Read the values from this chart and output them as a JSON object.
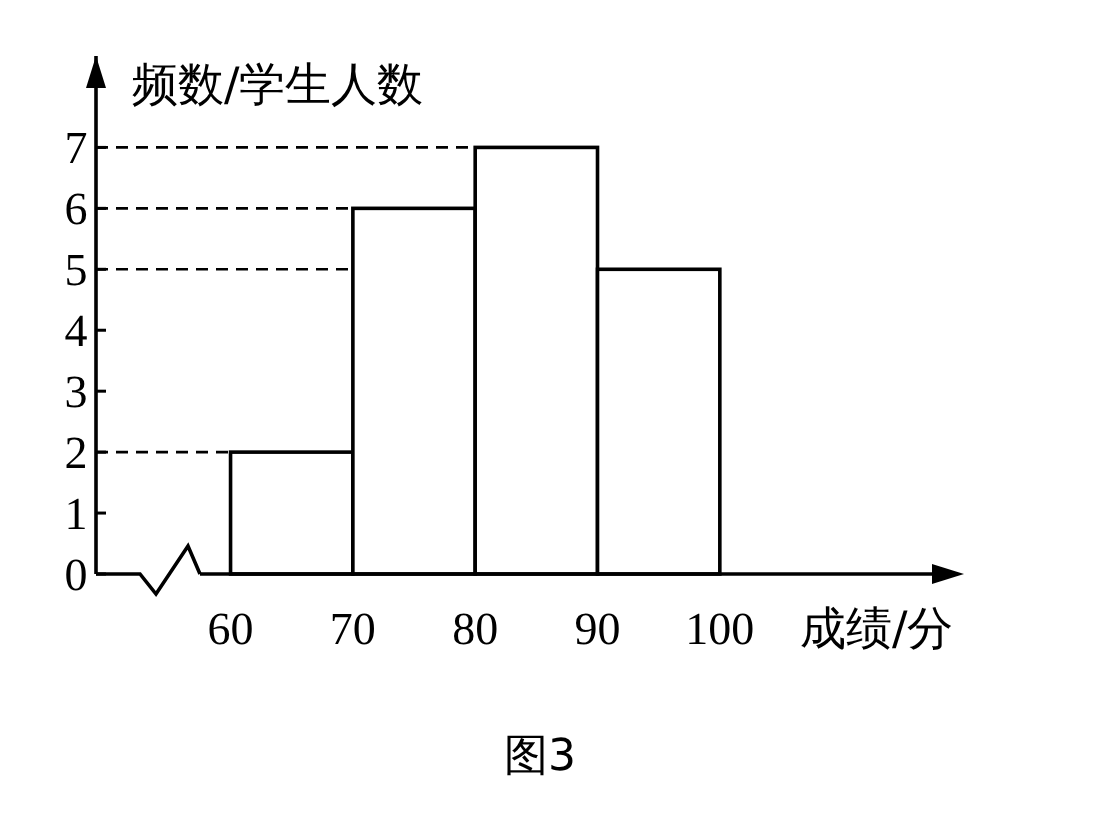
{
  "chart_data": {
    "type": "histogram",
    "bins": [
      60,
      70,
      80,
      90,
      100
    ],
    "values": [
      2,
      6,
      7,
      5
    ],
    "color": "#ffffff",
    "xlim": [
      49,
      118
    ],
    "ylim": [
      0,
      8.5
    ],
    "xticks": [
      60,
      70,
      80,
      90,
      100
    ],
    "yticks": [
      0,
      1,
      2,
      3,
      4,
      5,
      6,
      7
    ],
    "xlabel": "成绩/分",
    "ylabel": "频数/学生人数",
    "ref_lines": [
      {
        "axis": "y",
        "value": 2,
        "line_style": "dashed"
      },
      {
        "axis": "y",
        "value": 6,
        "line_style": "dashed"
      },
      {
        "axis": "y",
        "value": 7,
        "line_style": "dashed"
      },
      {
        "axis": "y",
        "value": 5,
        "line_style": "dashed"
      }
    ],
    "grid": false,
    "annotations": [
      "图3"
    ]
  }
}
